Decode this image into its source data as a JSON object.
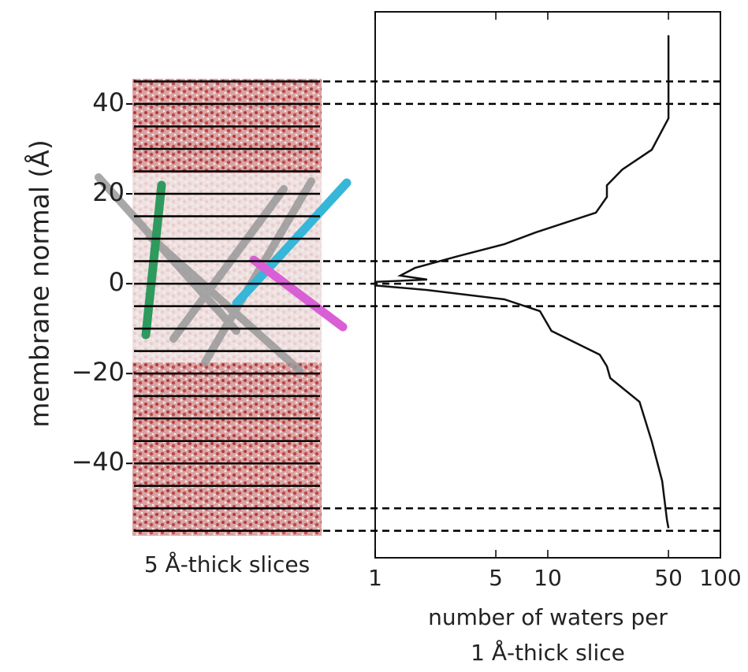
{
  "chart_data": {
    "type": "line",
    "ylabel": "membrane normal (Å)",
    "slice_label": "5 Å-thick slices",
    "xlabel": [
      "number of waters per",
      "1 Å-thick slice"
    ],
    "xscale": "log",
    "xlim": [
      1,
      100
    ],
    "xticks": [
      1,
      5,
      10,
      50,
      100
    ],
    "ylim": [
      -61,
      60.5
    ],
    "yticks": [
      40,
      20,
      0,
      {
        "value": -20,
        "label": "−20"
      },
      {
        "value": -40,
        "label": "−40"
      }
    ],
    "slice_lines": [
      45,
      40,
      35,
      30,
      25,
      20,
      15,
      10,
      5,
      0,
      -5,
      -10,
      -15,
      -20,
      -25,
      -30,
      -35,
      -40,
      -45,
      -50,
      -55
    ],
    "dashed_lines": [
      45,
      40,
      5,
      0,
      -5,
      -50,
      -55
    ],
    "series": [
      {
        "color": "#111111",
        "x": [
          50,
          50,
          40,
          27,
          22,
          22,
          19,
          8.5,
          5.6,
          3,
          1.7,
          1.4,
          2,
          1.0,
          1.0,
          2,
          5.6,
          9,
          10.5,
          20,
          22,
          23,
          34,
          40,
          46,
          49,
          50
        ],
        "values": [
          55.3,
          36.8,
          29.8,
          25.4,
          21.9,
          19.3,
          15.8,
          11.4,
          8.8,
          6.1,
          3.5,
          1.8,
          0.9,
          0.4,
          -0.4,
          -1.4,
          -3.5,
          -6.1,
          -10.5,
          -15.8,
          -18.4,
          -21,
          -26.3,
          -35.1,
          -43.9,
          -52.6,
          -54.4
        ]
      }
    ]
  }
}
